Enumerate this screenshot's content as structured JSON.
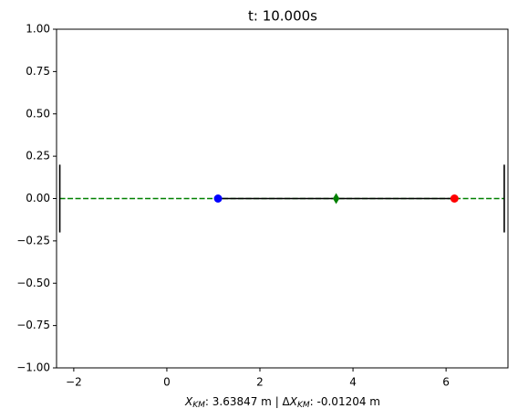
{
  "chart_data": {
    "type": "line",
    "title": "t: 10.000s",
    "xlabel": [
      {
        "text": "X",
        "style": "italic"
      },
      {
        "text": "KM",
        "style": "italic-sub"
      },
      {
        "text": ": 3.63847 m  |  Δ",
        "style": "normal"
      },
      {
        "text": "X",
        "style": "italic"
      },
      {
        "text": "KM",
        "style": "italic-sub"
      },
      {
        "text": ": -0.01204 m",
        "style": "normal"
      }
    ],
    "xlim": [
      -2.37,
      7.33
    ],
    "ylim": [
      -1,
      1
    ],
    "xticks": [
      {
        "value": -2,
        "label": "−2"
      },
      0,
      2,
      4,
      6
    ],
    "yticks": [
      {
        "value": -1,
        "label": "−1.00"
      },
      {
        "value": -0.75,
        "label": "−0.75"
      },
      {
        "value": -0.5,
        "label": "−0.50"
      },
      {
        "value": -0.25,
        "label": "−0.25"
      },
      {
        "value": 0,
        "label": "0.00"
      },
      {
        "value": 0.25,
        "label": "0.25"
      },
      {
        "value": 0.5,
        "label": "0.50"
      },
      {
        "value": 0.75,
        "label": "0.75"
      },
      {
        "value": 1,
        "label": "1.00"
      }
    ],
    "series": [
      {
        "x": [
          -2.3,
          7.25
        ],
        "values": [
          0,
          0
        ],
        "color": "#008000",
        "linestyle": "dashed",
        "marker": "none"
      },
      {
        "x": [
          1.1,
          6.18
        ],
        "values": [
          0,
          0
        ],
        "color": "#000000",
        "linestyle": "solid",
        "marker": "none"
      },
      {
        "x": [
          -2.3,
          -2.3
        ],
        "values": [
          -0.2,
          0.2
        ],
        "color": "#000000",
        "linestyle": "solid",
        "marker": "none"
      },
      {
        "x": [
          7.25,
          7.25
        ],
        "values": [
          -0.2,
          0.2
        ],
        "color": "#000000",
        "linestyle": "solid",
        "marker": "none"
      },
      {
        "x": [
          1.1
        ],
        "values": [
          0
        ],
        "color": "#0000ff",
        "linestyle": "none",
        "marker": "circle"
      },
      {
        "x": [
          6.18
        ],
        "values": [
          0
        ],
        "color": "#ff0000",
        "linestyle": "none",
        "marker": "circle"
      },
      {
        "x": [
          3.638
        ],
        "values": [
          0
        ],
        "color": "#008000",
        "linestyle": "none",
        "marker": "diamond"
      }
    ]
  }
}
